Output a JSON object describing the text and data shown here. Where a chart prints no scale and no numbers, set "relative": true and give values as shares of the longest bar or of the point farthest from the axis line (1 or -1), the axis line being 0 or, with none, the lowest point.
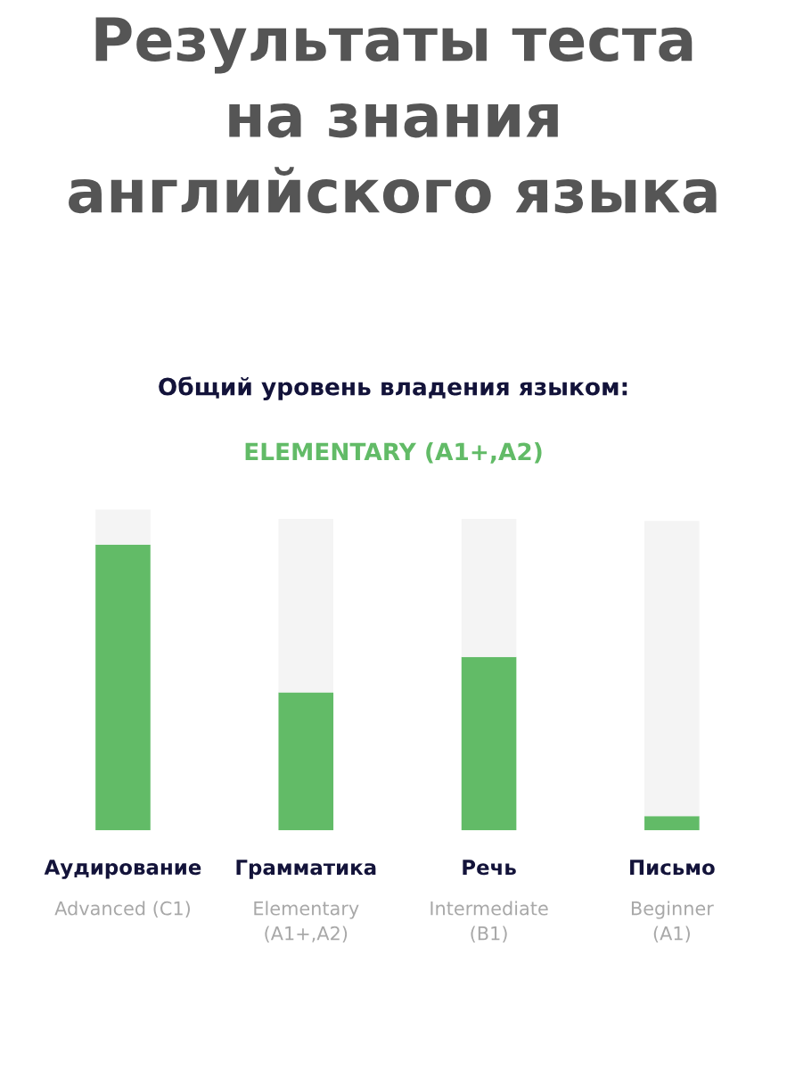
{
  "chart_data": {
    "type": "bar",
    "title": "Результаты теста\nна знания\nанглийского языка",
    "subtitle": "Общий уровень владения языком:",
    "annotations": [
      "ELEMENTARY (A1+,A2)"
    ],
    "relative": true,
    "stacked": true,
    "categories": [
      "Аудирование\nAdvanced (C1)",
      "Грамматика\nElementary\n(A1+,A2)",
      "Речь\nIntermediate\n(B1)",
      "Письмо\nBeginner\n(A1)"
    ],
    "series": [
      {
        "color": "#62bb67",
        "values": [
          0.89,
          0.43,
          0.54,
          0.044
        ]
      },
      {
        "color": "#f4f4f4",
        "values": [
          0.11,
          0.54,
          0.43,
          0.92
        ]
      }
    ]
  }
}
